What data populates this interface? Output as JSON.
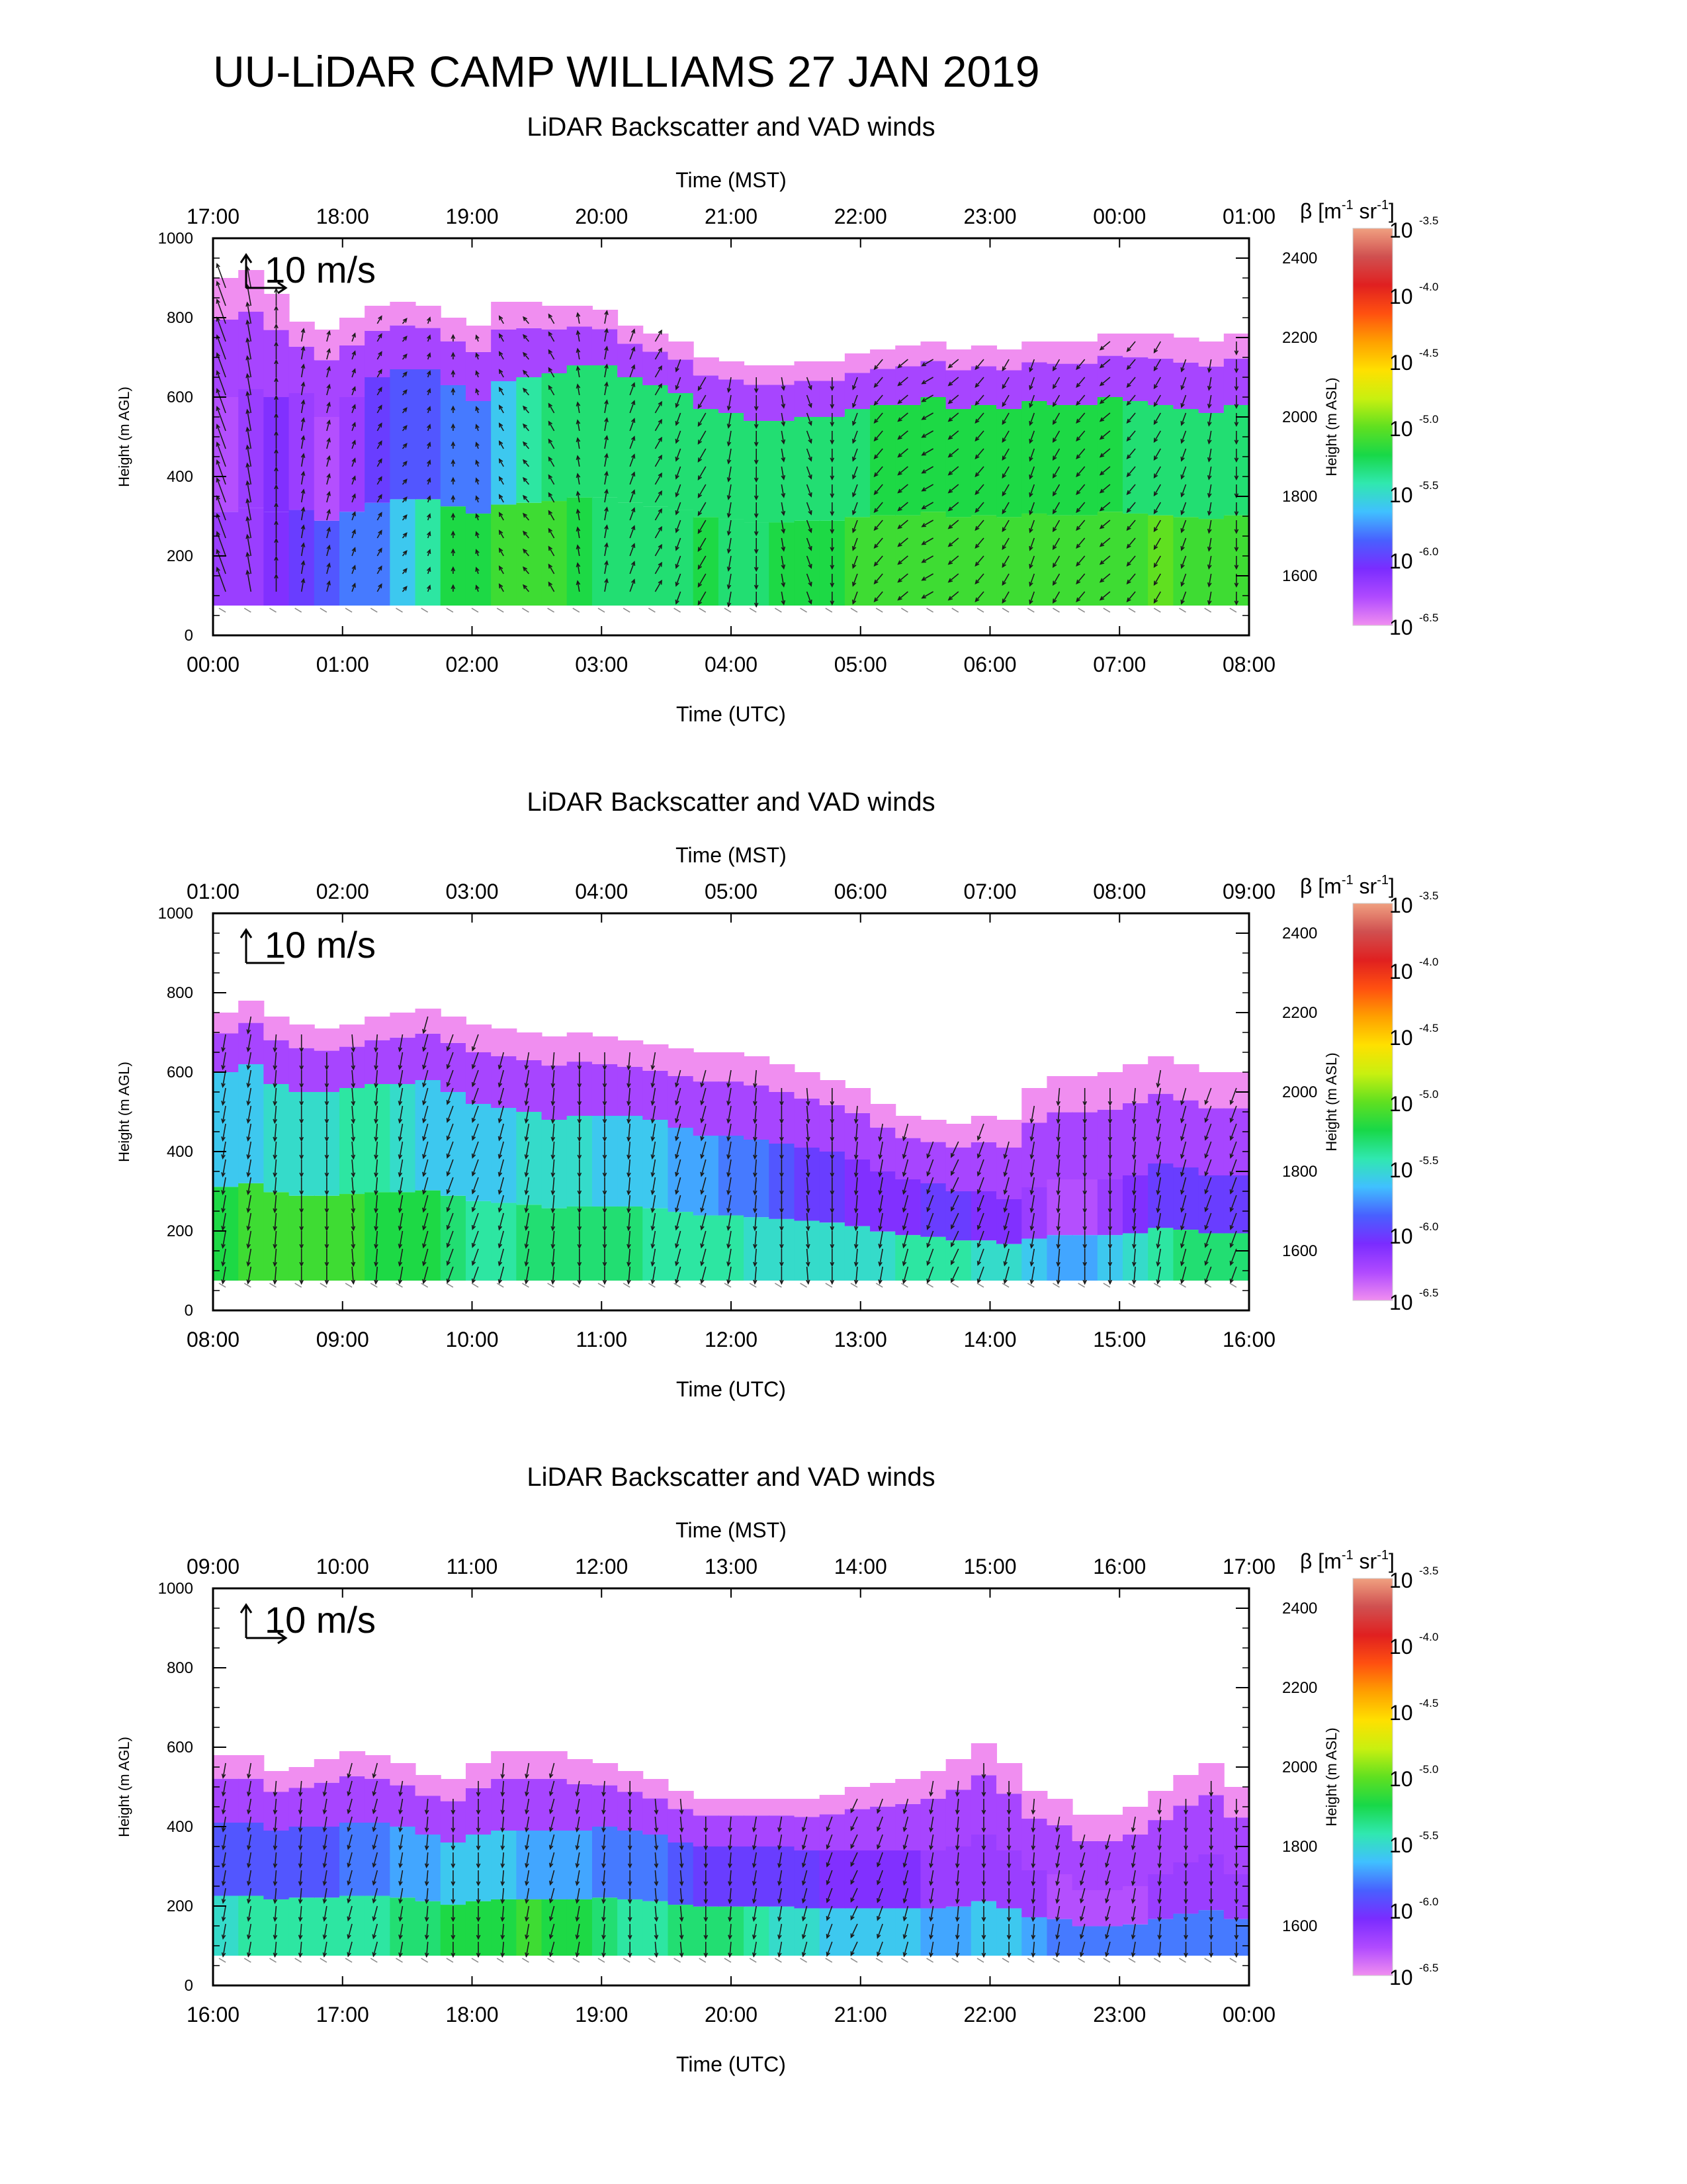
{
  "main_title": "UU-LiDAR CAMP WILLIAMS 27 JAN 2019",
  "chart_data": [
    {
      "type": "heatmap",
      "title": "LiDAR Backscatter and VAD winds",
      "xlabel": "Time (UTC)",
      "x2label": "Time (MST)",
      "ylabel": "Height (m AGL)",
      "y2label": "Height (m ASL)",
      "x_ticks": [
        "00:00",
        "01:00",
        "02:00",
        "03:00",
        "04:00",
        "05:00",
        "06:00",
        "07:00",
        "08:00"
      ],
      "x2_ticks": [
        "17:00",
        "18:00",
        "19:00",
        "20:00",
        "21:00",
        "22:00",
        "23:00",
        "00:00",
        "01:00"
      ],
      "y_ticks": [
        "0",
        "200",
        "400",
        "600",
        "800",
        "1000"
      ],
      "y2_ticks": [
        "1600",
        "1800",
        "2000",
        "2200",
        "2400"
      ],
      "ylim": [
        0,
        1000
      ],
      "y2lim": [
        1450,
        2450
      ],
      "wind_scale_label": "10 m/s",
      "show_reference_u_arrow": true,
      "bottom_height_m": 75,
      "top_height_m": [
        900,
        920,
        860,
        790,
        770,
        800,
        830,
        840,
        830,
        800,
        780,
        840,
        840,
        830,
        830,
        820,
        780,
        760,
        740,
        700,
        690,
        680,
        680,
        690,
        690,
        710,
        720,
        730,
        740,
        720,
        730,
        720,
        740,
        740,
        740,
        760,
        760,
        760,
        750,
        740,
        760
      ],
      "top_band_m": [
        300,
        300,
        260,
        180,
        220,
        200,
        180,
        170,
        160,
        170,
        190,
        200,
        190,
        170,
        150,
        140,
        130,
        130,
        130,
        130,
        130,
        140,
        140,
        140,
        140,
        140,
        140,
        150,
        140,
        150,
        150,
        150,
        150,
        160,
        160,
        160,
        170,
        180,
        180,
        180,
        180
      ],
      "surface_log10_beta": [
        -6.2,
        -6.2,
        -6.1,
        -6.0,
        -5.9,
        -5.8,
        -5.8,
        -5.6,
        -5.4,
        -5.2,
        -5.2,
        -5.1,
        -5.1,
        -5.1,
        -5.2,
        -5.3,
        -5.3,
        -5.3,
        -5.3,
        -5.2,
        -5.3,
        -5.3,
        -5.2,
        -5.2,
        -5.2,
        -5.1,
        -5.1,
        -5.1,
        -5.1,
        -5.1,
        -5.1,
        -5.1,
        -5.1,
        -5.1,
        -5.1,
        -5.1,
        -5.1,
        -5.0,
        -5.1,
        -5.1,
        -5.1
      ],
      "mid_log10_beta": [
        -6.3,
        -6.2,
        -6.1,
        -6.2,
        -6.3,
        -6.2,
        -6.0,
        -5.9,
        -5.9,
        -5.8,
        -5.8,
        -5.6,
        -5.4,
        -5.3,
        -5.3,
        -5.3,
        -5.3,
        -5.3,
        -5.3,
        -5.3,
        -5.3,
        -5.3,
        -5.3,
        -5.3,
        -5.3,
        -5.3,
        -5.2,
        -5.2,
        -5.2,
        -5.2,
        -5.2,
        -5.2,
        -5.2,
        -5.2,
        -5.2,
        -5.2,
        -5.3,
        -5.3,
        -5.3,
        -5.3,
        -5.3
      ],
      "wind_dir_deg": [
        340,
        350,
        0,
        10,
        15,
        20,
        30,
        40,
        20,
        0,
        340,
        330,
        320,
        330,
        350,
        10,
        20,
        30,
        200,
        210,
        190,
        180,
        170,
        160,
        180,
        200,
        220,
        230,
        240,
        230,
        220,
        210,
        200,
        210,
        220,
        230,
        220,
        210,
        200,
        190,
        180
      ],
      "wind_speed_ms": [
        12,
        10,
        8,
        6,
        5,
        4,
        4,
        3,
        3,
        3,
        3,
        4,
        4,
        5,
        5,
        6,
        6,
        6,
        6,
        7,
        7,
        7,
        6,
        6,
        6,
        6,
        6,
        6,
        6,
        6,
        6,
        6,
        6,
        6,
        6,
        6,
        6,
        6,
        6,
        6,
        6
      ]
    },
    {
      "type": "heatmap",
      "title": "LiDAR Backscatter and VAD winds",
      "xlabel": "Time (UTC)",
      "x2label": "Time (MST)",
      "ylabel": "Height (m AGL)",
      "y2label": "Height (m ASL)",
      "x_ticks": [
        "08:00",
        "09:00",
        "10:00",
        "11:00",
        "12:00",
        "13:00",
        "14:00",
        "15:00",
        "16:00"
      ],
      "x2_ticks": [
        "01:00",
        "02:00",
        "03:00",
        "04:00",
        "05:00",
        "06:00",
        "07:00",
        "08:00",
        "09:00"
      ],
      "y_ticks": [
        "0",
        "200",
        "400",
        "600",
        "800",
        "1000"
      ],
      "y2_ticks": [
        "1600",
        "1800",
        "2000",
        "2200",
        "2400"
      ],
      "ylim": [
        0,
        1000
      ],
      "y2lim": [
        1450,
        2450
      ],
      "wind_scale_label": "10 m/s",
      "show_reference_u_arrow": false,
      "bottom_height_m": 75,
      "top_height_m": [
        750,
        780,
        740,
        720,
        710,
        720,
        740,
        750,
        760,
        740,
        720,
        710,
        700,
        690,
        700,
        690,
        680,
        670,
        660,
        650,
        650,
        640,
        620,
        600,
        580,
        560,
        520,
        490,
        480,
        470,
        490,
        480,
        560,
        590,
        590,
        600,
        620,
        640,
        620,
        600,
        600
      ],
      "top_band_m": [
        150,
        160,
        170,
        170,
        160,
        160,
        170,
        180,
        180,
        190,
        200,
        200,
        200,
        210,
        210,
        200,
        190,
        190,
        200,
        210,
        210,
        210,
        200,
        190,
        180,
        180,
        170,
        160,
        160,
        170,
        190,
        200,
        250,
        260,
        260,
        270,
        280,
        270,
        260,
        260,
        260
      ],
      "surface_log10_beta": [
        -5.2,
        -5.1,
        -5.1,
        -5.1,
        -5.1,
        -5.1,
        -5.2,
        -5.2,
        -5.2,
        -5.3,
        -5.4,
        -5.4,
        -5.3,
        -5.3,
        -5.3,
        -5.3,
        -5.3,
        -5.4,
        -5.4,
        -5.4,
        -5.4,
        -5.5,
        -5.5,
        -5.5,
        -5.5,
        -5.5,
        -5.5,
        -5.4,
        -5.4,
        -5.4,
        -5.5,
        -5.5,
        -5.6,
        -5.7,
        -5.7,
        -5.6,
        -5.5,
        -5.4,
        -5.3,
        -5.3,
        -5.3
      ],
      "mid_log10_beta": [
        -5.6,
        -5.6,
        -5.5,
        -5.5,
        -5.5,
        -5.4,
        -5.4,
        -5.5,
        -5.6,
        -5.6,
        -5.6,
        -5.6,
        -5.5,
        -5.5,
        -5.5,
        -5.6,
        -5.6,
        -5.6,
        -5.7,
        -5.7,
        -5.8,
        -5.8,
        -5.9,
        -6.0,
        -6.0,
        -6.1,
        -6.1,
        -6.1,
        -6.0,
        -6.0,
        -6.1,
        -6.1,
        -6.2,
        -6.3,
        -6.3,
        -6.2,
        -6.1,
        -6.0,
        -6.0,
        -6.0,
        -6.0
      ],
      "wind_dir_deg": [
        190,
        190,
        185,
        180,
        180,
        175,
        185,
        190,
        195,
        200,
        200,
        195,
        190,
        185,
        180,
        180,
        185,
        190,
        195,
        195,
        190,
        185,
        180,
        175,
        180,
        185,
        190,
        195,
        200,
        205,
        200,
        195,
        190,
        185,
        180,
        180,
        185,
        190,
        195,
        200,
        200
      ],
      "wind_speed_ms": [
        8,
        8,
        8,
        8,
        8,
        8,
        8,
        8,
        8,
        8,
        8,
        8,
        8,
        8,
        8,
        8,
        8,
        8,
        8,
        8,
        8,
        8,
        8,
        8,
        8,
        8,
        8,
        8,
        8,
        8,
        8,
        8,
        8,
        8,
        8,
        8,
        8,
        8,
        8,
        8,
        8
      ]
    },
    {
      "type": "heatmap",
      "title": "LiDAR Backscatter and VAD winds",
      "xlabel": "Time (UTC)",
      "x2label": "Time (MST)",
      "ylabel": "Height (m AGL)",
      "y2label": "Height (m ASL)",
      "x_ticks": [
        "16:00",
        "17:00",
        "18:00",
        "19:00",
        "20:00",
        "21:00",
        "22:00",
        "23:00",
        "00:00"
      ],
      "x2_ticks": [
        "09:00",
        "10:00",
        "11:00",
        "12:00",
        "13:00",
        "14:00",
        "15:00",
        "16:00",
        "17:00"
      ],
      "y_ticks": [
        "0",
        "200",
        "400",
        "600",
        "800",
        "1000"
      ],
      "y2_ticks": [
        "1600",
        "1800",
        "2000",
        "2200",
        "2400"
      ],
      "ylim": [
        0,
        1000
      ],
      "y2lim": [
        1450,
        2450
      ],
      "wind_scale_label": "10 m/s",
      "show_reference_u_arrow": true,
      "bottom_height_m": 75,
      "top_height_m": [
        580,
        580,
        540,
        550,
        570,
        590,
        580,
        560,
        530,
        520,
        560,
        590,
        590,
        590,
        570,
        560,
        540,
        520,
        490,
        470,
        470,
        470,
        470,
        470,
        480,
        500,
        510,
        520,
        540,
        570,
        610,
        560,
        490,
        470,
        430,
        430,
        450,
        490,
        530,
        560,
        500
      ],
      "top_band_m": [
        170,
        170,
        150,
        150,
        170,
        180,
        170,
        160,
        150,
        160,
        180,
        200,
        200,
        200,
        180,
        160,
        150,
        140,
        130,
        120,
        120,
        120,
        120,
        130,
        140,
        160,
        170,
        180,
        200,
        220,
        230,
        220,
        200,
        190,
        190,
        190,
        200,
        210,
        220,
        230,
        220
      ],
      "surface_log10_beta": [
        -5.5,
        -5.4,
        -5.4,
        -5.4,
        -5.4,
        -5.4,
        -5.4,
        -5.3,
        -5.3,
        -5.2,
        -5.2,
        -5.2,
        -5.1,
        -5.2,
        -5.2,
        -5.3,
        -5.4,
        -5.4,
        -5.3,
        -5.3,
        -5.3,
        -5.4,
        -5.5,
        -5.5,
        -5.6,
        -5.6,
        -5.6,
        -5.6,
        -5.7,
        -5.7,
        -5.6,
        -5.6,
        -5.7,
        -5.8,
        -5.8,
        -5.8,
        -5.8,
        -5.8,
        -5.8,
        -5.8,
        -5.8
      ],
      "mid_log10_beta": [
        -5.9,
        -5.9,
        -5.9,
        -5.9,
        -5.9,
        -5.8,
        -5.8,
        -5.7,
        -5.7,
        -5.6,
        -5.6,
        -5.6,
        -5.7,
        -5.7,
        -5.7,
        -5.8,
        -5.8,
        -5.8,
        -5.9,
        -6.0,
        -6.0,
        -6.0,
        -6.0,
        -6.0,
        -6.1,
        -6.1,
        -6.1,
        -6.1,
        -6.2,
        -6.2,
        -6.2,
        -6.2,
        -6.2,
        -6.3,
        -6.3,
        -6.3,
        -6.3,
        -6.2,
        -6.2,
        -6.2,
        -6.2
      ],
      "wind_dir_deg": [
        190,
        190,
        185,
        185,
        190,
        195,
        195,
        190,
        185,
        180,
        180,
        185,
        190,
        195,
        190,
        185,
        180,
        175,
        175,
        180,
        185,
        190,
        190,
        195,
        200,
        205,
        200,
        195,
        190,
        185,
        180,
        180,
        185,
        190,
        195,
        195,
        190,
        185,
        180,
        180,
        180
      ],
      "wind_speed_ms": [
        7,
        7,
        7,
        7,
        7,
        7,
        7,
        7,
        7,
        7,
        7,
        7,
        7,
        7,
        7,
        7,
        7,
        7,
        7,
        7,
        7,
        7,
        7,
        7,
        7,
        7,
        7,
        7,
        7,
        7,
        7,
        7,
        7,
        7,
        7,
        7,
        7,
        7,
        7,
        7,
        7
      ]
    }
  ],
  "colorbar": {
    "label_prefix": "β [m",
    "label_exp1": "-1",
    "label_mid": " sr",
    "label_exp2": "-1",
    "label_suffix": "]",
    "tick_base": "10",
    "tick_exponents": [
      "-3.5",
      "-4.0",
      "-4.5",
      "-5.0",
      "-5.5",
      "-6.0",
      "-6.5"
    ],
    "range_log10": [
      -6.5,
      -3.5
    ],
    "colors": [
      "#f08ef0",
      "#b04aff",
      "#7a2cff",
      "#4860ff",
      "#40c0ff",
      "#30e8b0",
      "#18d848",
      "#60e020",
      "#c8f010",
      "#ffe000",
      "#ffa000",
      "#ff5010",
      "#e02020",
      "#d05050",
      "#f0a080"
    ]
  }
}
